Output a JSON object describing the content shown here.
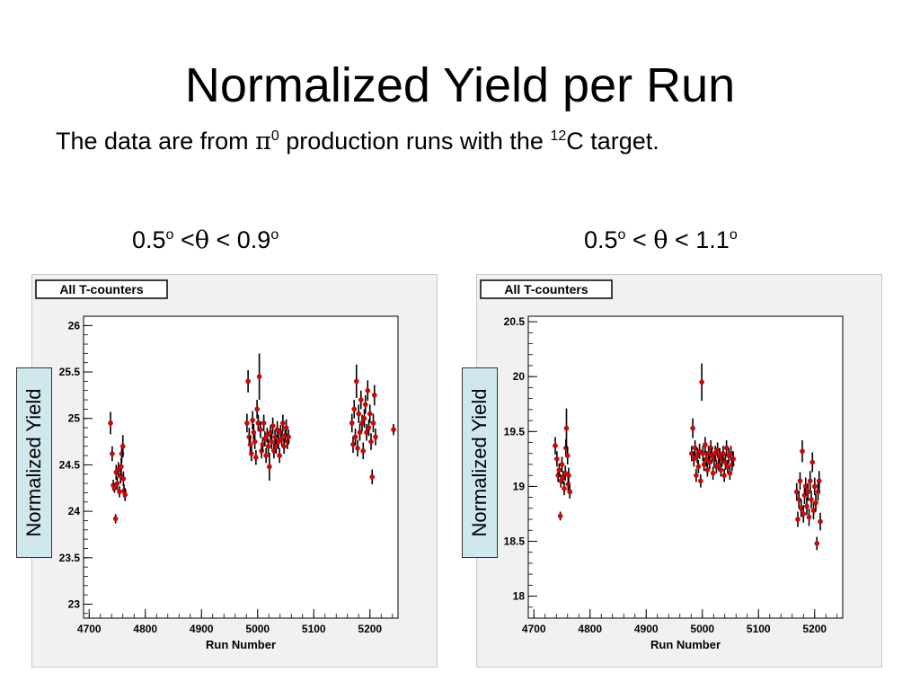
{
  "slide": {
    "title": "Normalized Yield per Run",
    "subtitle_pre": "The data are from ",
    "subtitle_pi": "π",
    "subtitle_pi_sup": "0",
    "subtitle_mid": " production runs with the ",
    "subtitle_isotope_sup": "12",
    "subtitle_post": "C target."
  },
  "ranges": [
    {
      "lo": "0.5",
      "lo_sup": "o",
      "rel1": " <",
      "theta": "θ",
      "rel2": " < 0.9",
      "hi_sup": "o"
    },
    {
      "lo": "0.5",
      "lo_sup": "o",
      "rel1": " < ",
      "theta": "θ",
      "rel2": " < 1.1",
      "hi_sup": "o"
    }
  ],
  "ylabel_box": "Normalized Yield",
  "chart_data": [
    {
      "type": "scatter",
      "title": "All T-counters",
      "xlabel": "Run Number",
      "ylabel": "",
      "xlim": [
        4690,
        5250
      ],
      "ylim": [
        22.85,
        26.1
      ],
      "xticks": [
        4700,
        4800,
        4900,
        5000,
        5100,
        5200
      ],
      "yticks": [
        23,
        23.5,
        24,
        24.5,
        25,
        25.5,
        26
      ],
      "ytick_labels": [
        "23",
        "23.5",
        "24",
        "24.5",
        "25",
        "25.5",
        "26"
      ],
      "grid": false,
      "marker_color": "#e00000",
      "errorbar_color": "#000000",
      "points": [
        [
          4738,
          24.95,
          0.12
        ],
        [
          4741,
          24.62,
          0.08
        ],
        [
          4743,
          24.28,
          0.06
        ],
        [
          4745,
          24.25,
          0.05
        ],
        [
          4747,
          23.92,
          0.05
        ],
        [
          4748,
          24.42,
          0.08
        ],
        [
          4750,
          24.3,
          0.07
        ],
        [
          4752,
          24.45,
          0.08
        ],
        [
          4754,
          24.21,
          0.06
        ],
        [
          4756,
          24.38,
          0.08
        ],
        [
          4757,
          24.48,
          0.09
        ],
        [
          4758,
          24.62,
          0.1
        ],
        [
          4760,
          24.7,
          0.12
        ],
        [
          4761,
          24.35,
          0.08
        ],
        [
          4762,
          24.22,
          0.07
        ],
        [
          4764,
          24.18,
          0.07
        ],
        [
          4981,
          24.95,
          0.1
        ],
        [
          4983,
          25.4,
          0.12
        ],
        [
          4985,
          24.8,
          0.1
        ],
        [
          4987,
          24.72,
          0.09
        ],
        [
          4989,
          24.62,
          0.08
        ],
        [
          4991,
          24.98,
          0.1
        ],
        [
          4993,
          24.85,
          0.09
        ],
        [
          4995,
          24.75,
          0.08
        ],
        [
          4997,
          24.58,
          0.08
        ],
        [
          4999,
          25.1,
          0.1
        ],
        [
          5001,
          24.95,
          0.09
        ],
        [
          5003,
          25.45,
          0.25
        ],
        [
          5005,
          24.88,
          0.09
        ],
        [
          5007,
          24.65,
          0.08
        ],
        [
          5009,
          24.72,
          0.08
        ],
        [
          5011,
          24.95,
          0.09
        ],
        [
          5013,
          24.78,
          0.08
        ],
        [
          5015,
          24.6,
          0.08
        ],
        [
          5017,
          24.82,
          0.08
        ],
        [
          5019,
          24.7,
          0.08
        ],
        [
          5021,
          24.48,
          0.15
        ],
        [
          5023,
          24.85,
          0.08
        ],
        [
          5025,
          24.75,
          0.08
        ],
        [
          5027,
          24.92,
          0.09
        ],
        [
          5029,
          24.65,
          0.08
        ],
        [
          5031,
          24.8,
          0.08
        ],
        [
          5033,
          24.7,
          0.08
        ],
        [
          5035,
          24.88,
          0.09
        ],
        [
          5037,
          24.75,
          0.08
        ],
        [
          5039,
          24.6,
          0.08
        ],
        [
          5041,
          24.85,
          0.08
        ],
        [
          5043,
          24.78,
          0.08
        ],
        [
          5045,
          24.95,
          0.09
        ],
        [
          5047,
          24.7,
          0.08
        ],
        [
          5049,
          24.82,
          0.08
        ],
        [
          5051,
          24.9,
          0.09
        ],
        [
          5053,
          24.75,
          0.08
        ],
        [
          5055,
          24.8,
          0.08
        ],
        [
          5168,
          24.95,
          0.1
        ],
        [
          5170,
          24.72,
          0.09
        ],
        [
          5172,
          25.1,
          0.1
        ],
        [
          5174,
          24.8,
          0.09
        ],
        [
          5176,
          25.4,
          0.18
        ],
        [
          5178,
          24.68,
          0.09
        ],
        [
          5180,
          25.05,
          0.1
        ],
        [
          5182,
          24.85,
          0.09
        ],
        [
          5184,
          25.2,
          0.1
        ],
        [
          5186,
          24.95,
          0.09
        ],
        [
          5188,
          24.65,
          0.09
        ],
        [
          5190,
          25.0,
          0.1
        ],
        [
          5192,
          25.15,
          0.1
        ],
        [
          5194,
          24.85,
          0.09
        ],
        [
          5196,
          25.3,
          0.11
        ],
        [
          5198,
          24.9,
          0.09
        ],
        [
          5200,
          25.05,
          0.1
        ],
        [
          5202,
          24.75,
          0.09
        ],
        [
          5204,
          24.37,
          0.08
        ],
        [
          5206,
          24.95,
          0.1
        ],
        [
          5208,
          25.25,
          0.11
        ],
        [
          5210,
          24.8,
          0.09
        ],
        [
          5242,
          24.88,
          0.06
        ]
      ]
    },
    {
      "type": "scatter",
      "title": "All T-counters",
      "xlabel": "Run Number",
      "ylabel": "",
      "xlim": [
        4690,
        5250
      ],
      "ylim": [
        17.8,
        20.55
      ],
      "xticks": [
        4700,
        4800,
        4900,
        5000,
        5100,
        5200
      ],
      "yticks": [
        18,
        18.5,
        19,
        19.5,
        20,
        20.5
      ],
      "ytick_labels": [
        "18",
        "18.5",
        "19",
        "19.5",
        "20",
        "20.5"
      ],
      "grid": false,
      "marker_color": "#e00000",
      "errorbar_color": "#000000",
      "points": [
        [
          4738,
          19.37,
          0.08
        ],
        [
          4741,
          19.25,
          0.07
        ],
        [
          4743,
          19.1,
          0.06
        ],
        [
          4745,
          19.15,
          0.06
        ],
        [
          4747,
          18.73,
          0.04
        ],
        [
          4748,
          19.05,
          0.06
        ],
        [
          4750,
          19.2,
          0.07
        ],
        [
          4752,
          19.08,
          0.06
        ],
        [
          4754,
          18.98,
          0.06
        ],
        [
          4756,
          19.12,
          0.07
        ],
        [
          4757,
          19.35,
          0.08
        ],
        [
          4758,
          19.53,
          0.18
        ],
        [
          4760,
          19.28,
          0.08
        ],
        [
          4761,
          19.02,
          0.07
        ],
        [
          4762,
          19.1,
          0.07
        ],
        [
          4764,
          18.95,
          0.06
        ],
        [
          4981,
          19.3,
          0.07
        ],
        [
          4983,
          19.53,
          0.09
        ],
        [
          4985,
          19.25,
          0.07
        ],
        [
          4987,
          19.35,
          0.07
        ],
        [
          4989,
          19.1,
          0.06
        ],
        [
          4991,
          19.28,
          0.07
        ],
        [
          4993,
          19.18,
          0.06
        ],
        [
          4995,
          19.32,
          0.07
        ],
        [
          4997,
          19.05,
          0.06
        ],
        [
          4999,
          19.95,
          0.17
        ],
        [
          5001,
          19.3,
          0.07
        ],
        [
          5003,
          19.2,
          0.06
        ],
        [
          5005,
          19.38,
          0.07
        ],
        [
          5007,
          19.25,
          0.07
        ],
        [
          5009,
          19.15,
          0.06
        ],
        [
          5011,
          19.3,
          0.07
        ],
        [
          5013,
          19.22,
          0.06
        ],
        [
          5015,
          19.35,
          0.07
        ],
        [
          5017,
          19.28,
          0.07
        ],
        [
          5019,
          19.12,
          0.06
        ],
        [
          5021,
          19.25,
          0.07
        ],
        [
          5023,
          19.3,
          0.07
        ],
        [
          5025,
          19.18,
          0.06
        ],
        [
          5027,
          19.33,
          0.07
        ],
        [
          5029,
          19.2,
          0.06
        ],
        [
          5031,
          19.28,
          0.07
        ],
        [
          5033,
          19.15,
          0.06
        ],
        [
          5035,
          19.25,
          0.07
        ],
        [
          5037,
          19.3,
          0.07
        ],
        [
          5039,
          19.1,
          0.06
        ],
        [
          5041,
          19.22,
          0.07
        ],
        [
          5043,
          19.35,
          0.07
        ],
        [
          5045,
          19.18,
          0.06
        ],
        [
          5047,
          19.28,
          0.07
        ],
        [
          5049,
          19.12,
          0.06
        ],
        [
          5051,
          19.3,
          0.07
        ],
        [
          5053,
          19.2,
          0.06
        ],
        [
          5055,
          19.25,
          0.07
        ],
        [
          5168,
          18.95,
          0.08
        ],
        [
          5170,
          18.7,
          0.07
        ],
        [
          5172,
          18.88,
          0.08
        ],
        [
          5174,
          19.05,
          0.08
        ],
        [
          5176,
          18.8,
          0.08
        ],
        [
          5178,
          19.32,
          0.1
        ],
        [
          5180,
          18.75,
          0.08
        ],
        [
          5182,
          18.92,
          0.08
        ],
        [
          5184,
          19.0,
          0.08
        ],
        [
          5186,
          18.82,
          0.08
        ],
        [
          5188,
          18.95,
          0.08
        ],
        [
          5190,
          18.72,
          0.08
        ],
        [
          5192,
          19.05,
          0.09
        ],
        [
          5194,
          18.88,
          0.08
        ],
        [
          5196,
          19.22,
          0.09
        ],
        [
          5198,
          18.78,
          0.08
        ],
        [
          5200,
          19.0,
          0.08
        ],
        [
          5202,
          18.85,
          0.08
        ],
        [
          5204,
          18.48,
          0.06
        ],
        [
          5206,
          18.95,
          0.08
        ],
        [
          5208,
          19.05,
          0.09
        ],
        [
          5210,
          18.68,
          0.08
        ]
      ]
    }
  ]
}
